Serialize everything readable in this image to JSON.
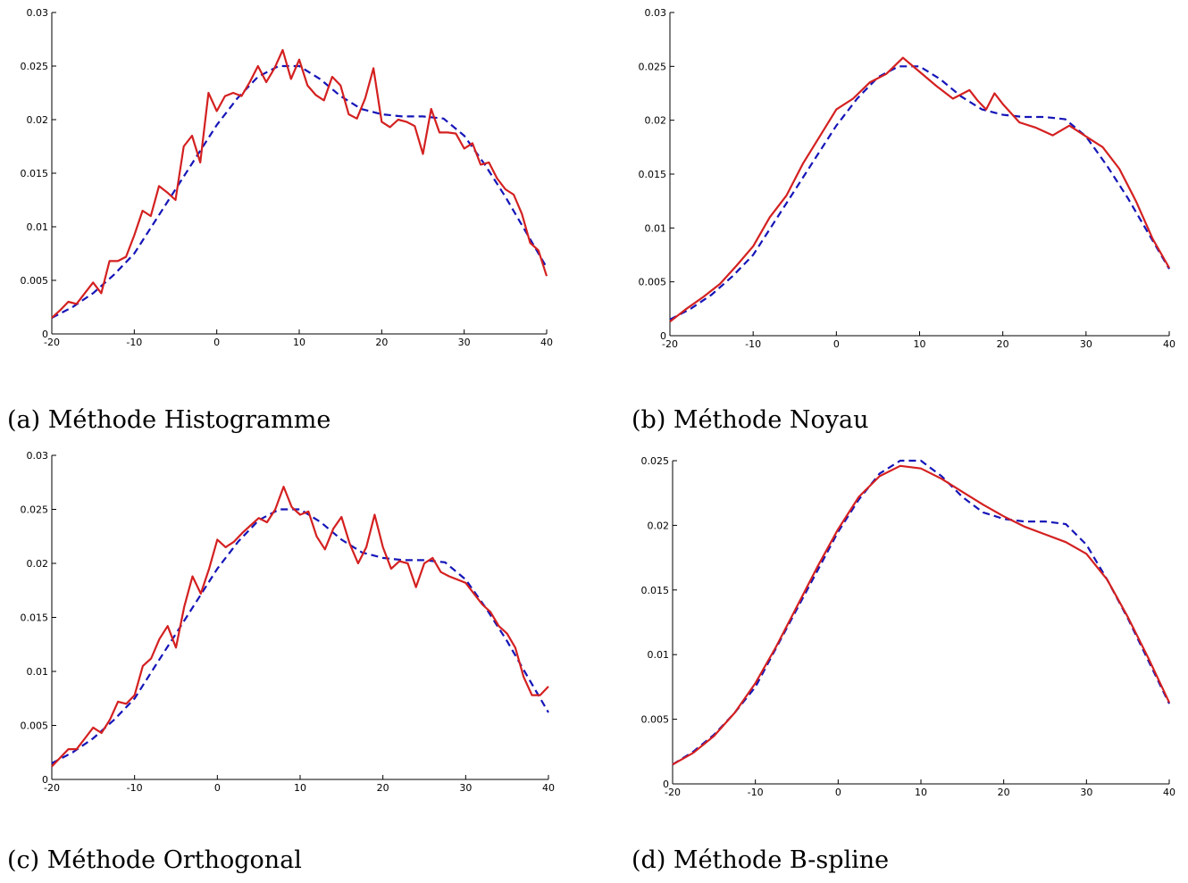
{
  "colors": {
    "estimate": "#d42020",
    "true_density": "#1515b8"
  },
  "chart_data": [
    {
      "type": "line",
      "caption": "(a) Méthode Histogramme",
      "xlim": [
        -20,
        40
      ],
      "ylim": [
        0,
        0.03
      ],
      "xticks": [
        -20,
        -10,
        0,
        10,
        20,
        30,
        40
      ],
      "xtick_labels": [
        "-20",
        "-10",
        "0",
        "10",
        "20",
        "30",
        "40"
      ],
      "yticks": [
        0,
        0.005,
        0.01,
        0.015,
        0.02,
        0.025,
        0.03
      ],
      "ytick_labels": [
        "0",
        "0.005",
        "0.01",
        "0.015",
        "0.02",
        "0.025",
        "0.03"
      ],
      "grid": false,
      "series": [
        {
          "style": "dashed-blue",
          "x": [
            -20,
            -17.5,
            -15,
            -12.5,
            -10,
            -7.5,
            -5,
            -2.5,
            0,
            2.5,
            5,
            7.5,
            10,
            12.5,
            15,
            17.5,
            20,
            22.5,
            25,
            27.5,
            30,
            32.5,
            35,
            37.5,
            40
          ],
          "y": [
            0.0015,
            0.0025,
            0.0038,
            0.0055,
            0.0075,
            0.0105,
            0.0135,
            0.0165,
            0.0195,
            0.022,
            0.024,
            0.025,
            0.025,
            0.0238,
            0.0222,
            0.021,
            0.0205,
            0.0203,
            0.0203,
            0.0201,
            0.0185,
            0.0158,
            0.0128,
            0.0095,
            0.0062
          ]
        },
        {
          "style": "solid-red",
          "x": [
            -20,
            -19,
            -18,
            -17,
            -16,
            -15,
            -14,
            -13,
            -12,
            -11,
            -10,
            -9,
            -8,
            -7,
            -6,
            -5,
            -4,
            -3,
            -2,
            -1,
            0,
            1,
            2,
            3,
            4,
            5,
            6,
            7,
            8,
            9,
            10,
            11,
            12,
            13,
            14,
            15,
            16,
            17,
            18,
            19,
            20,
            21,
            22,
            23,
            24,
            25,
            26,
            27,
            28,
            29,
            30,
            31,
            32,
            33,
            34,
            35,
            36,
            37,
            38,
            39,
            40
          ],
          "y": [
            0.0015,
            0.0022,
            0.003,
            0.0028,
            0.0038,
            0.0048,
            0.0038,
            0.0068,
            0.0068,
            0.0072,
            0.0092,
            0.0115,
            0.011,
            0.0138,
            0.0132,
            0.0125,
            0.0175,
            0.0185,
            0.016,
            0.0225,
            0.0208,
            0.0222,
            0.0225,
            0.0222,
            0.0235,
            0.025,
            0.0235,
            0.0248,
            0.0265,
            0.0238,
            0.0256,
            0.0232,
            0.0223,
            0.0218,
            0.024,
            0.0232,
            0.0205,
            0.0201,
            0.022,
            0.0248,
            0.0198,
            0.0193,
            0.02,
            0.0198,
            0.0194,
            0.0168,
            0.021,
            0.0188,
            0.0188,
            0.0187,
            0.0173,
            0.0178,
            0.0158,
            0.016,
            0.0145,
            0.0135,
            0.013,
            0.0112,
            0.0085,
            0.0078,
            0.0054
          ]
        }
      ]
    },
    {
      "type": "line",
      "caption": "(b) Méthode Noyau",
      "xlim": [
        -20,
        40
      ],
      "ylim": [
        0,
        0.03
      ],
      "xticks": [
        -20,
        -10,
        0,
        10,
        20,
        30,
        40
      ],
      "xtick_labels": [
        "-20",
        "-10",
        "0",
        "10",
        "20",
        "30",
        "40"
      ],
      "yticks": [
        0,
        0.005,
        0.01,
        0.015,
        0.02,
        0.025,
        0.03
      ],
      "ytick_labels": [
        "0",
        "0.005",
        "0.01",
        "0.015",
        "0.02",
        "0.025",
        "0.03"
      ],
      "grid": false,
      "series": [
        {
          "style": "dashed-blue",
          "x": [
            -20,
            -17.5,
            -15,
            -12.5,
            -10,
            -7.5,
            -5,
            -2.5,
            0,
            2.5,
            5,
            7.5,
            10,
            12.5,
            15,
            17.5,
            20,
            22.5,
            25,
            27.5,
            30,
            32.5,
            35,
            37.5,
            40
          ],
          "y": [
            0.0015,
            0.0025,
            0.0038,
            0.0055,
            0.0075,
            0.0105,
            0.0135,
            0.0165,
            0.0195,
            0.022,
            0.024,
            0.025,
            0.025,
            0.0238,
            0.0222,
            0.021,
            0.0205,
            0.0203,
            0.0203,
            0.0201,
            0.0185,
            0.0158,
            0.0128,
            0.0095,
            0.0062
          ]
        },
        {
          "style": "solid-red",
          "x": [
            -20,
            -18,
            -16,
            -14,
            -12,
            -10,
            -8,
            -6,
            -4,
            -2,
            0,
            2,
            4,
            6,
            8,
            10,
            12,
            14,
            16,
            17,
            18,
            19,
            20,
            22,
            24,
            26,
            28,
            30,
            32,
            34,
            36,
            38,
            40
          ],
          "y": [
            0.0013,
            0.0025,
            0.0036,
            0.0048,
            0.0065,
            0.0083,
            0.011,
            0.013,
            0.016,
            0.0185,
            0.021,
            0.022,
            0.0235,
            0.0243,
            0.0258,
            0.0245,
            0.0232,
            0.022,
            0.0228,
            0.0218,
            0.021,
            0.0225,
            0.0215,
            0.0198,
            0.0193,
            0.0186,
            0.0195,
            0.0185,
            0.0175,
            0.0155,
            0.0125,
            0.009,
            0.0063
          ]
        }
      ]
    },
    {
      "type": "line",
      "caption": "(c) Méthode Orthogonal",
      "xlim": [
        -20,
        40
      ],
      "ylim": [
        0,
        0.03
      ],
      "xticks": [
        -20,
        -10,
        0,
        10,
        20,
        30,
        40
      ],
      "xtick_labels": [
        "-20",
        "-10",
        "0",
        "10",
        "20",
        "30",
        "40"
      ],
      "yticks": [
        0,
        0.005,
        0.01,
        0.015,
        0.02,
        0.025,
        0.03
      ],
      "ytick_labels": [
        "0",
        "0.005",
        "0.01",
        "0.015",
        "0.02",
        "0.025",
        "0.03"
      ],
      "grid": false,
      "series": [
        {
          "style": "dashed-blue",
          "x": [
            -20,
            -17.5,
            -15,
            -12.5,
            -10,
            -7.5,
            -5,
            -2.5,
            0,
            2.5,
            5,
            7.5,
            10,
            12.5,
            15,
            17.5,
            20,
            22.5,
            25,
            27.5,
            30,
            32.5,
            35,
            37.5,
            40
          ],
          "y": [
            0.0015,
            0.0025,
            0.0038,
            0.0055,
            0.0075,
            0.0105,
            0.0135,
            0.0165,
            0.0195,
            0.022,
            0.024,
            0.025,
            0.025,
            0.0238,
            0.0222,
            0.021,
            0.0205,
            0.0203,
            0.0203,
            0.0201,
            0.0185,
            0.0158,
            0.0128,
            0.0095,
            0.0062
          ]
        },
        {
          "style": "solid-red",
          "x": [
            -20,
            -19,
            -18,
            -17,
            -16,
            -15,
            -14,
            -13,
            -12,
            -11,
            -10,
            -9,
            -8,
            -7,
            -6,
            -5,
            -4,
            -3,
            -2,
            -1,
            0,
            1,
            2,
            3,
            4,
            5,
            6,
            7,
            8,
            9,
            10,
            11,
            12,
            13,
            14,
            15,
            16,
            17,
            18,
            19,
            20,
            21,
            22,
            23,
            24,
            25,
            26,
            27,
            28,
            29,
            30,
            31,
            32,
            33,
            34,
            35,
            36,
            37,
            38,
            39,
            40
          ],
          "y": [
            0.0012,
            0.002,
            0.0028,
            0.0028,
            0.0038,
            0.0048,
            0.0043,
            0.0055,
            0.0072,
            0.007,
            0.0078,
            0.0105,
            0.0112,
            0.013,
            0.0142,
            0.0122,
            0.016,
            0.0188,
            0.0172,
            0.0195,
            0.0222,
            0.0215,
            0.022,
            0.0228,
            0.0235,
            0.0242,
            0.0238,
            0.025,
            0.0271,
            0.0252,
            0.0245,
            0.0248,
            0.0225,
            0.0213,
            0.0232,
            0.0243,
            0.0218,
            0.02,
            0.0215,
            0.0245,
            0.0215,
            0.0195,
            0.0202,
            0.02,
            0.0178,
            0.02,
            0.0205,
            0.0192,
            0.0188,
            0.0185,
            0.0182,
            0.0172,
            0.0162,
            0.0155,
            0.0142,
            0.0135,
            0.0122,
            0.0095,
            0.0078,
            0.0078,
            0.0086
          ]
        }
      ]
    },
    {
      "type": "line",
      "caption": "(d) Méthode B-spline",
      "xlim": [
        -20,
        40
      ],
      "ylim": [
        0,
        0.025
      ],
      "xticks": [
        -20,
        -10,
        0,
        10,
        20,
        30,
        40
      ],
      "xtick_labels": [
        "-20",
        "-10",
        "0",
        "10",
        "20",
        "30",
        "40"
      ],
      "yticks": [
        0,
        0.005,
        0.01,
        0.015,
        0.02,
        0.025
      ],
      "ytick_labels": [
        "0",
        "0.005",
        "0.01",
        "0.015",
        "0.02",
        "0.025"
      ],
      "grid": false,
      "series": [
        {
          "style": "dashed-blue",
          "x": [
            -20,
            -17.5,
            -15,
            -12.5,
            -10,
            -7.5,
            -5,
            -2.5,
            0,
            2.5,
            5,
            7.5,
            10,
            12.5,
            15,
            17.5,
            20,
            22.5,
            25,
            27.5,
            30,
            32.5,
            35,
            37.5,
            40
          ],
          "y": [
            0.0015,
            0.0025,
            0.0038,
            0.0055,
            0.0075,
            0.0105,
            0.0135,
            0.0165,
            0.0195,
            0.022,
            0.024,
            0.025,
            0.025,
            0.0238,
            0.0222,
            0.021,
            0.0205,
            0.0203,
            0.0203,
            0.0201,
            0.0185,
            0.0158,
            0.0128,
            0.0095,
            0.0062
          ]
        },
        {
          "style": "solid-red",
          "x": [
            -20,
            -17.5,
            -15,
            -12.5,
            -10,
            -7.5,
            -5,
            -2.5,
            0,
            2.5,
            5,
            7.5,
            10,
            12.5,
            15,
            17.5,
            20,
            22.5,
            25,
            27.5,
            30,
            32.5,
            35,
            37.5,
            40
          ],
          "y": [
            0.0015,
            0.0024,
            0.0037,
            0.0055,
            0.0078,
            0.0106,
            0.0137,
            0.0168,
            0.0197,
            0.0222,
            0.0238,
            0.0246,
            0.0244,
            0.0236,
            0.0226,
            0.0216,
            0.0207,
            0.0199,
            0.0193,
            0.0187,
            0.0178,
            0.0158,
            0.0129,
            0.0097,
            0.0063
          ]
        }
      ]
    }
  ]
}
